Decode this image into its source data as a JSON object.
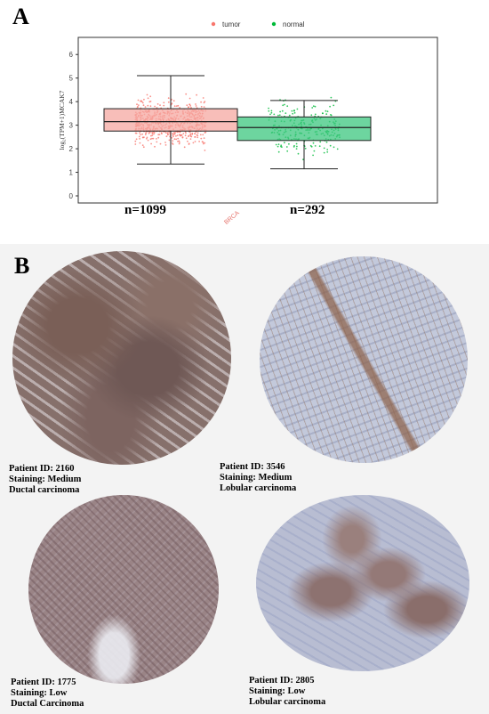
{
  "figure": {
    "panel_a_label": "A",
    "panel_b_label": "B"
  },
  "chart_data": {
    "type": "box",
    "ylabel": "log₂(TPM+1)MCAK7",
    "xlabel": "BRCA",
    "yticks": [
      "0",
      "1",
      "2",
      "3",
      "4",
      "5",
      "6"
    ],
    "ylim": [
      0,
      6.5
    ],
    "grid": false,
    "legend_placement": "top-center",
    "series": [
      {
        "name": "tumor",
        "color": "#f8766d",
        "fill": "#f6a8a2",
        "q1": 2.75,
        "median": 3.15,
        "q3": 3.7,
        "whisker_low": 1.35,
        "whisker_high": 5.1,
        "n_label": "n=1099"
      },
      {
        "name": "normal",
        "color": "#00ba38",
        "fill": "#3cc77f",
        "q1": 2.35,
        "median": 2.9,
        "q3": 3.35,
        "whisker_low": 1.15,
        "whisker_high": 4.05,
        "n_label": "n=292"
      }
    ]
  },
  "samples": [
    {
      "patient": "Patient ID: 2160",
      "staining": "Staining: Medium",
      "type": "Ductal carcinoma"
    },
    {
      "patient": "Patient ID: 3546",
      "staining": "Staining: Medium",
      "type": "Lobular carcinoma"
    },
    {
      "patient": "Patient ID: 1775",
      "staining": "Staining: Low",
      "type": "Ductal Carcinoma"
    },
    {
      "patient": "Patient ID: 2805",
      "staining": "Staining: Low",
      "type": "Lobular carcinoma"
    }
  ]
}
